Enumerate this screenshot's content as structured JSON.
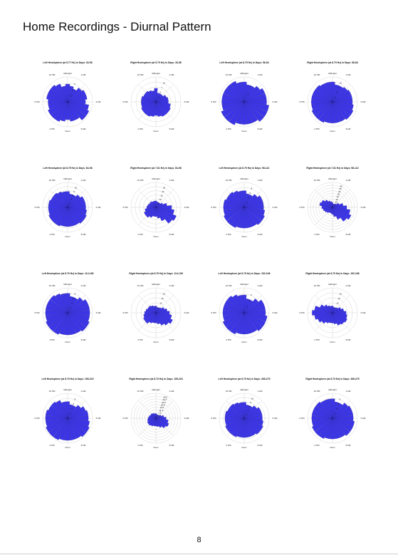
{
  "page": {
    "title": "Home Recordings - Diurnal Pattern",
    "page_number": "8"
  },
  "direction_labels": {
    "top": "Midnight",
    "bottom": "Noon",
    "upper_right": "2 AM",
    "right": "6 AM",
    "lower_right": "8 AM",
    "lower_left": "2 PM",
    "left": "6 PM",
    "upper_left": "10 PM"
  },
  "colors": {
    "bar": "#3b35e6",
    "bar_edge": "#1a1490",
    "grid": "#bbbbbb"
  },
  "chart_data": [
    {
      "type": "bar",
      "polar": true,
      "title": "Left Hemisphere (at 5.77 Hz) in Days: 33-56",
      "ring_labels": [
        "2",
        "4",
        "6"
      ],
      "rmax": 7,
      "values": [
        5,
        4.5,
        4,
        5,
        5.5,
        5.5,
        5,
        6,
        6.5,
        6.5,
        5.5,
        5.5,
        5,
        5.5,
        6,
        6,
        6,
        5.5,
        5.5,
        6,
        6,
        6,
        5.5,
        4.5
      ]
    },
    {
      "type": "bar",
      "polar": true,
      "title": "Right Hemisphere (at 5.79 Hz) in Days: 33-56",
      "ring_labels": [
        "2",
        "5",
        "7",
        "10"
      ],
      "rmax": 11,
      "values": [
        6,
        4,
        4,
        4,
        5,
        5.5,
        5.5,
        6.5,
        7,
        7,
        7,
        6.5,
        6,
        6.5,
        7,
        7,
        7,
        6.5,
        6.5,
        6.5,
        6,
        6,
        5.5,
        5
      ]
    },
    {
      "type": "bar",
      "polar": true,
      "title": "Left Hemisphere (at 8.79 Hz) in Days: 56-84",
      "ring_labels": [
        "2",
        "4"
      ],
      "rmax": 5,
      "values": [
        4,
        3.5,
        3.5,
        4,
        4.5,
        4.5,
        4.5,
        5,
        5,
        5,
        4.5,
        4.5,
        4.5,
        4.5,
        5,
        5,
        5,
        4.5,
        4.5,
        4.5,
        4.5,
        4.5,
        4.5,
        4
      ]
    },
    {
      "type": "bar",
      "polar": true,
      "title": "Right Hemisphere (at 8.79 Hz) in Days: 56-84",
      "ring_labels": [
        "2",
        "5",
        "7",
        "10"
      ],
      "rmax": 10,
      "values": [
        8,
        7,
        7,
        7.5,
        8,
        8,
        8,
        8.5,
        9,
        9,
        8.5,
        8.5,
        8.5,
        8.5,
        9,
        9,
        9,
        8.5,
        8.5,
        8.5,
        8.5,
        8.5,
        8,
        8
      ]
    },
    {
      "type": "bar",
      "polar": true,
      "title": "Left Hemisphere (at 8.79 Hz) in Days: 84-98",
      "ring_labels": [
        "2",
        "4",
        "6",
        "8",
        "10"
      ],
      "rmax": 11,
      "values": [
        7,
        6,
        6,
        7,
        8,
        8,
        8,
        8.5,
        9,
        9,
        8.5,
        8.5,
        8.5,
        8.5,
        9,
        9,
        9,
        8.5,
        8.5,
        8.5,
        8,
        8,
        7.5,
        7
      ]
    },
    {
      "type": "bar",
      "polar": true,
      "title": "Right Hemisphere (at 7.81 Hz) in Days: 84-98",
      "ring_labels": [
        "5",
        "10",
        "15",
        "20",
        "25"
      ],
      "rmax": 27,
      "values": [
        7,
        6,
        6,
        6,
        8,
        12,
        17,
        20,
        24,
        22,
        16,
        12,
        10,
        10,
        12,
        14,
        14,
        12,
        10,
        9,
        8,
        8,
        7,
        7
      ]
    },
    {
      "type": "bar",
      "polar": true,
      "title": "Left Hemisphere (at 8.79 Hz) in Days: 98-112",
      "ring_labels": [
        "2",
        "4",
        "6",
        "8"
      ],
      "rmax": 9,
      "values": [
        6,
        5,
        5,
        6,
        7,
        7,
        7,
        7.5,
        8,
        8,
        7.5,
        7.5,
        7.5,
        7.5,
        8,
        8,
        8,
        7.5,
        7.5,
        7.5,
        7,
        7,
        6.5,
        6
      ]
    },
    {
      "type": "bar",
      "polar": true,
      "title": "Right Hemisphere (at 7.81 Hz) in Days: 98-112",
      "ring_labels": [
        "5",
        "10",
        "15",
        "20",
        "25",
        "30",
        "35",
        "40"
      ],
      "rmax": 42,
      "values": [
        8,
        6,
        6,
        8,
        12,
        18,
        24,
        30,
        34,
        30,
        22,
        16,
        12,
        10,
        10,
        12,
        14,
        16,
        18,
        22,
        20,
        16,
        12,
        10
      ]
    },
    {
      "type": "bar",
      "polar": true,
      "title": "Left Hemisphere (at 8.79 Hz) in Days: 114-138",
      "ring_labels": [
        "2",
        "4",
        "6",
        "8"
      ],
      "rmax": 9,
      "values": [
        7,
        6,
        6,
        7,
        8,
        8,
        8,
        8,
        8.5,
        8.5,
        8,
        8,
        8,
        8,
        8.5,
        8.5,
        8.5,
        8,
        8,
        8,
        8,
        8,
        7.5,
        7
      ]
    },
    {
      "type": "bar",
      "polar": true,
      "title": "Right Hemisphere (at 8.79 Hz) in Days: 114-138",
      "ring_labels": [
        "5",
        "10",
        "15",
        "20"
      ],
      "rmax": 22,
      "values": [
        6,
        5,
        5,
        6,
        8,
        10,
        12,
        14,
        16,
        14,
        12,
        10,
        9,
        9,
        10,
        12,
        12,
        11,
        10,
        9,
        8,
        8,
        7,
        6
      ]
    },
    {
      "type": "bar",
      "polar": true,
      "title": "Left Hemisphere (at 8.79 Hz) in Days: 152-166",
      "ring_labels": [
        "2",
        "4",
        "6"
      ],
      "rmax": 7,
      "values": [
        5,
        4,
        4,
        5,
        6,
        6,
        6,
        6.5,
        6.5,
        6.5,
        6,
        6,
        6,
        6,
        6.5,
        6.5,
        6.5,
        6,
        6,
        6,
        6,
        6,
        5.5,
        5
      ]
    },
    {
      "type": "bar",
      "polar": true,
      "title": "Right Hemisphere (at 8.79 Hz) in Days: 152-166",
      "ring_labels": [
        "5",
        "10",
        "15",
        "20"
      ],
      "rmax": 22,
      "values": [
        6,
        5,
        5,
        6,
        8,
        10,
        12,
        13,
        14,
        13,
        12,
        10,
        9,
        9,
        10,
        12,
        14,
        16,
        18,
        16,
        12,
        9,
        7,
        6
      ]
    },
    {
      "type": "bar",
      "polar": true,
      "title": "Left Hemisphere (at 8.79 Hz) in Days: 195-215",
      "ring_labels": [
        "2",
        "4",
        "6",
        "8"
      ],
      "rmax": 9,
      "values": [
        6,
        5,
        5,
        6,
        7,
        7.5,
        7.5,
        8,
        8.5,
        8.5,
        8,
        8,
        8,
        8,
        8.5,
        8.5,
        8.5,
        8,
        8,
        8,
        7.5,
        7.5,
        7,
        6
      ]
    },
    {
      "type": "bar",
      "polar": true,
      "title": "Right Hemisphere (at 8.79 Hz) in Days: 195-223",
      "ring_labels": [
        "3.4",
        "7.5",
        "11.3",
        "15.0",
        "18.8",
        "22.5",
        "26.3",
        "30.0"
      ],
      "rmax": 32,
      "values": [
        6,
        5,
        5,
        5,
        7,
        10,
        13,
        16,
        18,
        16,
        13,
        11,
        10,
        10,
        11,
        12,
        12,
        11,
        10,
        9,
        8,
        8,
        7,
        6
      ]
    },
    {
      "type": "bar",
      "polar": true,
      "title": "Left Hemisphere (at 8.79 Hz) in Days: 265-279",
      "ring_labels": [
        "2",
        "4",
        "6",
        "8",
        "10"
      ],
      "rmax": 11,
      "values": [
        7,
        6,
        6,
        7,
        8,
        8,
        8,
        8.5,
        9,
        9,
        8.5,
        8.5,
        8.5,
        8.5,
        9,
        9,
        9,
        8.5,
        8.5,
        8.5,
        8,
        8,
        7.5,
        7
      ]
    },
    {
      "type": "bar",
      "polar": true,
      "title": "Right Hemisphere (at 8.79 Hz) in Days: 265-279",
      "ring_labels": [
        "2",
        "4",
        "6",
        "8"
      ],
      "rmax": 9,
      "values": [
        7,
        6,
        6,
        7,
        7.5,
        7.5,
        7.5,
        8,
        8,
        8,
        7.5,
        7.5,
        7.5,
        7.5,
        8,
        8,
        8,
        7.5,
        7.5,
        7.5,
        7.5,
        7.5,
        7,
        7
      ]
    }
  ]
}
